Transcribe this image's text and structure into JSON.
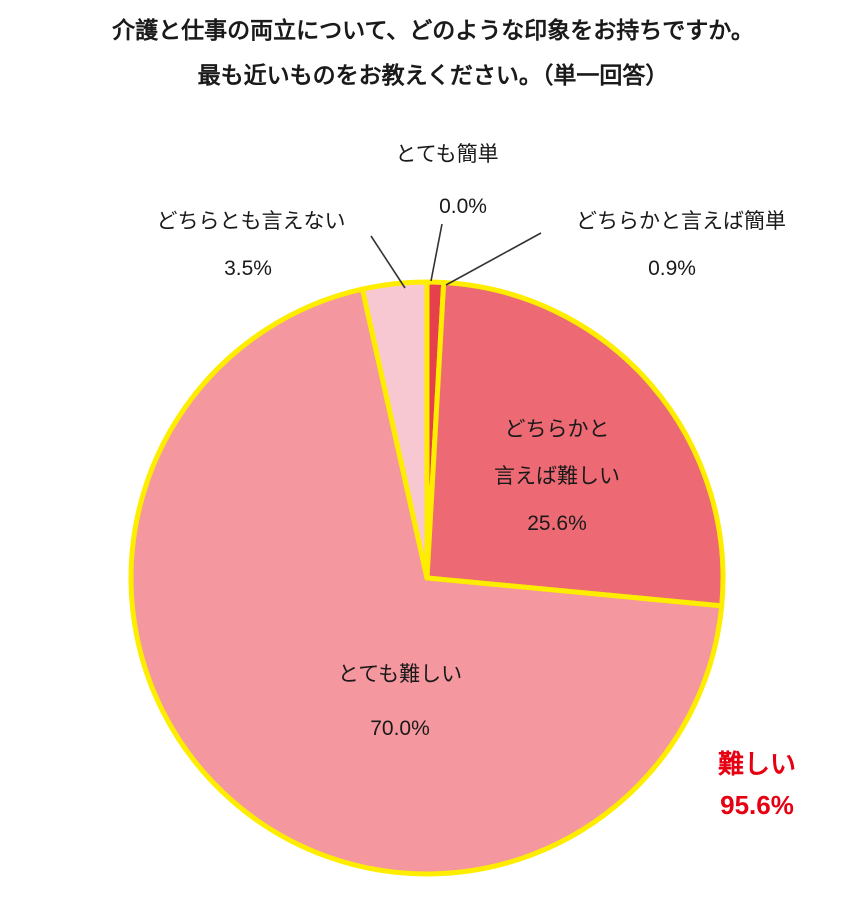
{
  "chart_data": {
    "type": "pie",
    "title_lines": [
      "介護と仕事の両立について、どのような印象をお持ちですか。",
      "最も近いものをお教えください。（単一回答）"
    ],
    "unit": "%",
    "direction": "clockwise",
    "start_angle_deg": 0,
    "border_color": "#ffed00",
    "slices": [
      {
        "label": "とても簡単",
        "value": 0.0,
        "pct": "0.0%",
        "color": "#e5404b"
      },
      {
        "label": "どちらかと言えば簡単",
        "value": 0.9,
        "pct": "0.9%",
        "color": "#e5404b"
      },
      {
        "label": "どちらかと言えば難しい",
        "value": 25.6,
        "pct": "25.6%",
        "color": "#ed6a74",
        "label_lines": [
          "どちらかと",
          "言えば難しい"
        ]
      },
      {
        "label": "とても難しい",
        "value": 70.0,
        "pct": "70.0%",
        "color": "#f5979f"
      },
      {
        "label": "どちらとも言えない",
        "value": 3.5,
        "pct": "3.5%",
        "color": "#f8c8d2"
      }
    ],
    "annotation": {
      "label": "難しい",
      "pct": "95.6%",
      "color": "#e60012"
    },
    "legend_position": "none",
    "grid": false
  }
}
